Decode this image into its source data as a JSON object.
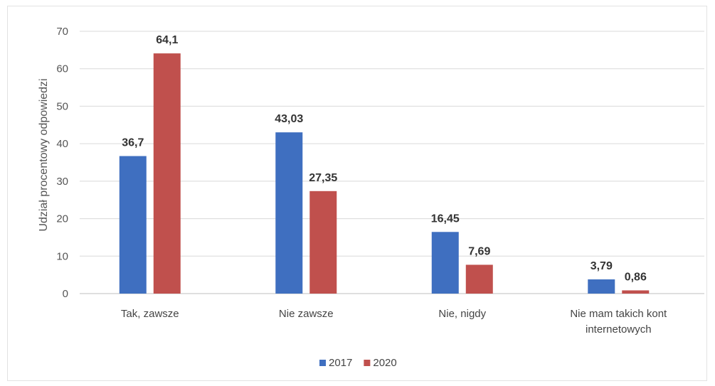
{
  "chart_data": {
    "type": "bar",
    "title": "",
    "xlabel": "",
    "ylabel": "Udział procentowy odpowiedzi",
    "ylim": [
      0,
      70
    ],
    "yticks": [
      0,
      10,
      20,
      30,
      40,
      50,
      60,
      70
    ],
    "grid": true,
    "legend_position": "bottom",
    "categories": [
      [
        "Tak, zawsze"
      ],
      [
        "Nie zawsze"
      ],
      [
        "Nie, nigdy"
      ],
      [
        "Nie mam takich kont",
        "internetowych"
      ]
    ],
    "series": [
      {
        "name": "2017",
        "color": "#3f6fc0",
        "values": [
          36.7,
          43.03,
          16.45,
          3.79
        ],
        "labels": [
          "36,7",
          "43,03",
          "16,45",
          "3,79"
        ]
      },
      {
        "name": "2020",
        "color": "#c0504d",
        "values": [
          64.1,
          27.35,
          7.69,
          0.86
        ],
        "labels": [
          "64,1",
          "27,35",
          "7,69",
          "0,86"
        ]
      }
    ]
  }
}
